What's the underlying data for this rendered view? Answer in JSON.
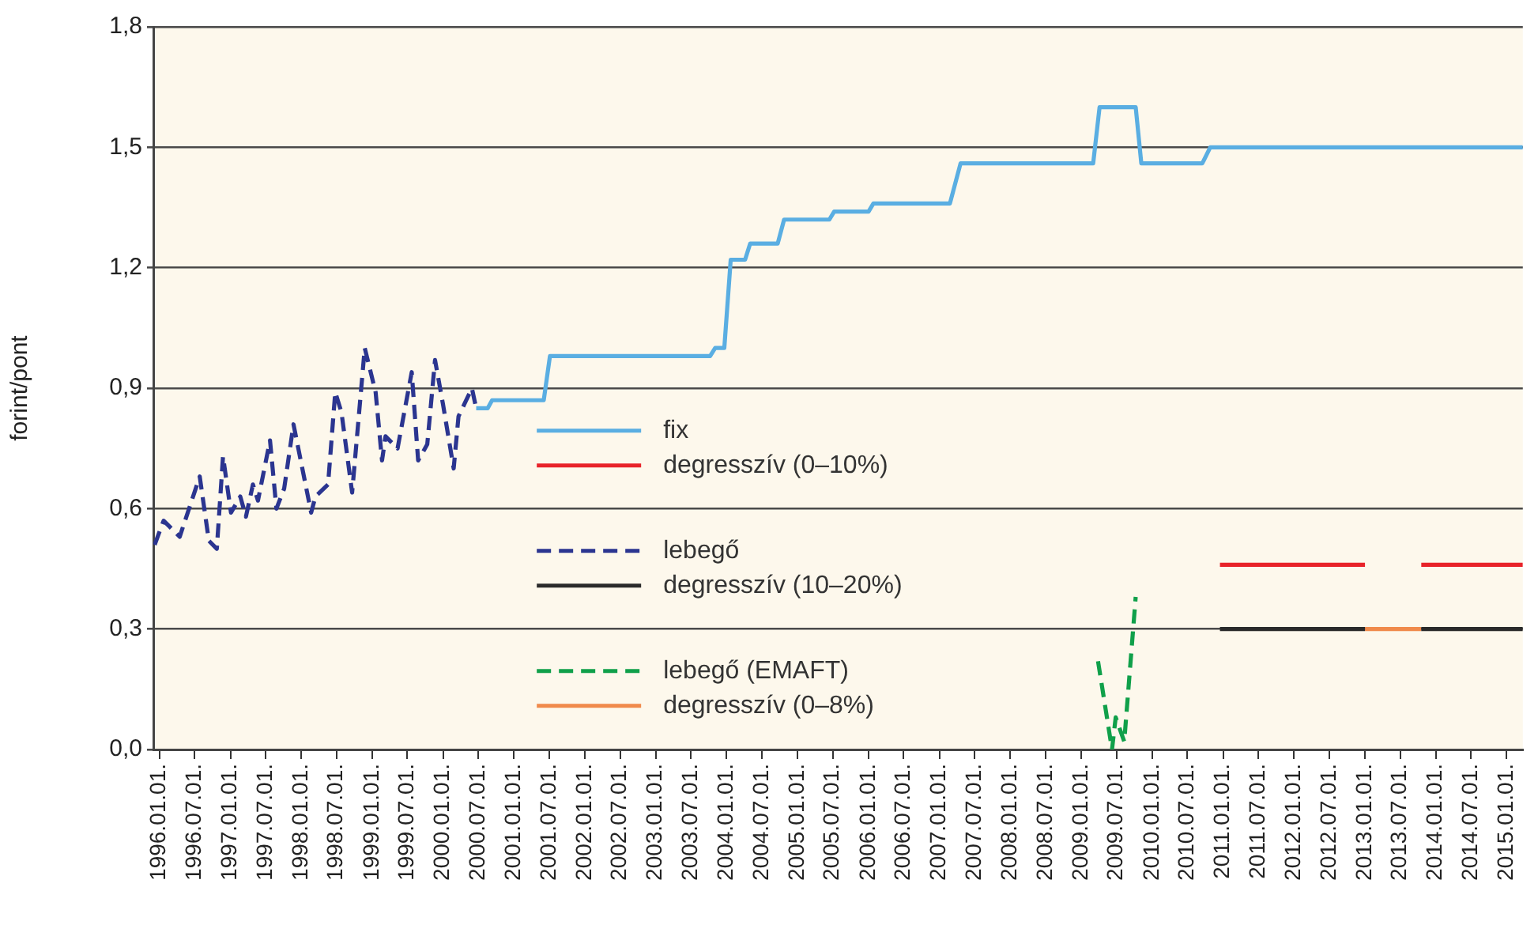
{
  "chart_data": {
    "type": "line",
    "ylabel": "forint/pont",
    "legend": "center",
    "grid": "y",
    "marker": "none",
    "xlim": [
      "1995-12-01",
      "2015-03-25"
    ],
    "xticks": [
      {
        "value": "1996-01-01",
        "label": "1996.01.01."
      },
      {
        "value": "1996-07-01",
        "label": "1996.07.01."
      },
      {
        "value": "1997-01-01",
        "label": "1997.01.01."
      },
      {
        "value": "1997-07-01",
        "label": "1997.07.01."
      },
      {
        "value": "1998-01-01",
        "label": "1998.01.01."
      },
      {
        "value": "1998-07-01",
        "label": "1998.07.01."
      },
      {
        "value": "1999-01-01",
        "label": "1999.01.01."
      },
      {
        "value": "1999-07-01",
        "label": "1999.07.01."
      },
      {
        "value": "2000-01-01",
        "label": "2000.01.01."
      },
      {
        "value": "2000-07-01",
        "label": "2000.07.01."
      },
      {
        "value": "2001-01-01",
        "label": "2001.01.01."
      },
      {
        "value": "2001-07-01",
        "label": "2001.07.01."
      },
      {
        "value": "2002-01-01",
        "label": "2002.01.01."
      },
      {
        "value": "2002-07-01",
        "label": "2002.07.01."
      },
      {
        "value": "2003-01-01",
        "label": "2003.01.01."
      },
      {
        "value": "2003-07-01",
        "label": "2003.07.01."
      },
      {
        "value": "2004-01-01",
        "label": "2004.01.01."
      },
      {
        "value": "2004-07-01",
        "label": "2004.07.01."
      },
      {
        "value": "2005-01-01",
        "label": "2005.01.01."
      },
      {
        "value": "2005-07-01",
        "label": "2005.07.01."
      },
      {
        "value": "2006-01-01",
        "label": "2006.01.01."
      },
      {
        "value": "2006-07-01",
        "label": "2006.07.01."
      },
      {
        "value": "2007-01-01",
        "label": "2007.01.01."
      },
      {
        "value": "2007-07-01",
        "label": "2007.07.01."
      },
      {
        "value": "2008-01-01",
        "label": "2008.01.01."
      },
      {
        "value": "2008-07-01",
        "label": "2008.07.01."
      },
      {
        "value": "2009-01-01",
        "label": "2009.01.01."
      },
      {
        "value": "2009-07-01",
        "label": "2009.07.01."
      },
      {
        "value": "2010-01-01",
        "label": "2010.01.01."
      },
      {
        "value": "2010-07-01",
        "label": "2010.07.01."
      },
      {
        "value": "2011-01-01",
        "label": "2011.01.01."
      },
      {
        "value": "2011-07-01",
        "label": "2011.07.01."
      },
      {
        "value": "2012-01-01",
        "label": "2012.01.01."
      },
      {
        "value": "2012-07-01",
        "label": "2012.07.01."
      },
      {
        "value": "2013-01-01",
        "label": "2013.01.01."
      },
      {
        "value": "2013-07-01",
        "label": "2013.07.01."
      },
      {
        "value": "2014-01-01",
        "label": "2014.01.01."
      },
      {
        "value": "2014-07-01",
        "label": "2014.07.01."
      },
      {
        "value": "2015-01-01",
        "label": "2015.01.01."
      }
    ],
    "ylim": [
      0,
      1.8
    ],
    "yticks": [
      {
        "value": 0,
        "label": "0,0"
      },
      {
        "value": 0.3,
        "label": "0,3"
      },
      {
        "value": 0.6,
        "label": "0,6"
      },
      {
        "value": 0.9,
        "label": "0,9"
      },
      {
        "value": 1.2,
        "label": "1,2"
      },
      {
        "value": 1.5,
        "label": "1,5"
      },
      {
        "value": 1.8,
        "label": "1,8"
      }
    ],
    "series": [
      {
        "name": "fix",
        "color": "#5aaee2",
        "line_style": "solid",
        "x": [
          "2000-06-20",
          "2000-08-18",
          "2000-09-10",
          "2001-06-03",
          "2001-07-05",
          "2003-10-08",
          "2003-11-03",
          "2003-12-20",
          "2004-01-22",
          "2004-04-05",
          "2004-05-01",
          "2004-09-20",
          "2004-10-23",
          "2005-06-13",
          "2005-07-08",
          "2006-01-01",
          "2006-01-26",
          "2007-02-24",
          "2007-04-20",
          "2009-03-03",
          "2009-04-05",
          "2009-10-08",
          "2009-11-06",
          "2010-09-16",
          "2010-10-27",
          "2015-03-25"
        ],
        "values": [
          0.85,
          0.85,
          0.87,
          0.87,
          0.98,
          0.98,
          1.0,
          1.0,
          1.22,
          1.22,
          1.26,
          1.26,
          1.32,
          1.32,
          1.34,
          1.34,
          1.36,
          1.36,
          1.46,
          1.46,
          1.6,
          1.6,
          1.46,
          1.46,
          1.5,
          1.5
        ]
      },
      {
        "name": "degresszív (0–10%)",
        "color": "#e8232a",
        "line_style": "solid",
        "x": [
          "2010-12-16",
          "2013-01-01",
          "2013-01-02",
          "2013-10-18",
          "2015-03-25"
        ],
        "values": [
          0.46,
          0.46,
          null,
          0.46,
          0.46
        ]
      },
      {
        "name": "lebegő",
        "color": "#2b3590",
        "line_style": "dashed",
        "x": [
          "1995-12-08",
          "1996-01-23",
          "1996-04-15",
          "1996-07-27",
          "1996-09-12",
          "1996-10-23",
          "1996-11-24",
          "1997-01-04",
          "1997-02-21",
          "1997-03-22",
          "1997-04-27",
          "1997-05-23",
          "1997-07-24",
          "1997-08-26",
          "1997-10-05",
          "1997-11-22",
          "1998-02-21",
          "1998-03-15",
          "1998-05-19",
          "1998-06-25",
          "1998-07-27",
          "1998-09-20",
          "1998-11-24",
          "1999-01-19",
          "1999-02-21",
          "1999-03-11",
          "1999-05-12",
          "1999-07-24",
          "1999-08-26",
          "1999-10-12",
          "1999-11-21",
          "2000-01-01",
          "2000-02-25",
          "2000-03-21",
          "2000-05-29",
          "2000-06-20"
        ],
        "values": [
          0.51,
          0.57,
          0.53,
          0.68,
          0.52,
          0.5,
          0.73,
          0.59,
          0.63,
          0.58,
          0.66,
          0.62,
          0.77,
          0.6,
          0.65,
          0.81,
          0.59,
          0.63,
          0.66,
          0.89,
          0.84,
          0.64,
          1.0,
          0.89,
          0.72,
          0.78,
          0.75,
          0.94,
          0.72,
          0.76,
          0.97,
          0.86,
          0.7,
          0.83,
          0.9,
          0.85
        ]
      },
      {
        "name": "degresszív (10–20%)",
        "color": "#2a2a2a",
        "line_style": "solid",
        "x": [
          "2010-12-16",
          "2013-01-01",
          "2013-01-02",
          "2013-10-18",
          "2015-03-25"
        ],
        "values": [
          0.3,
          0.3,
          null,
          0.3,
          0.3
        ]
      },
      {
        "name": "lebegő (EMAFT)",
        "color": "#10a04a",
        "line_style": "dashed",
        "x": [
          "2009-03-28",
          "2009-06-08",
          "2009-06-27",
          "2009-08-10",
          "2009-10-08"
        ],
        "values": [
          0.22,
          0.0,
          0.08,
          0.02,
          0.38
        ]
      },
      {
        "name": "degresszív (0–8%)",
        "color": "#f08a4b",
        "line_style": "solid",
        "x": [
          "2013-01-01",
          "2013-10-18"
        ],
        "values": [
          0.3,
          0.3
        ]
      }
    ]
  }
}
